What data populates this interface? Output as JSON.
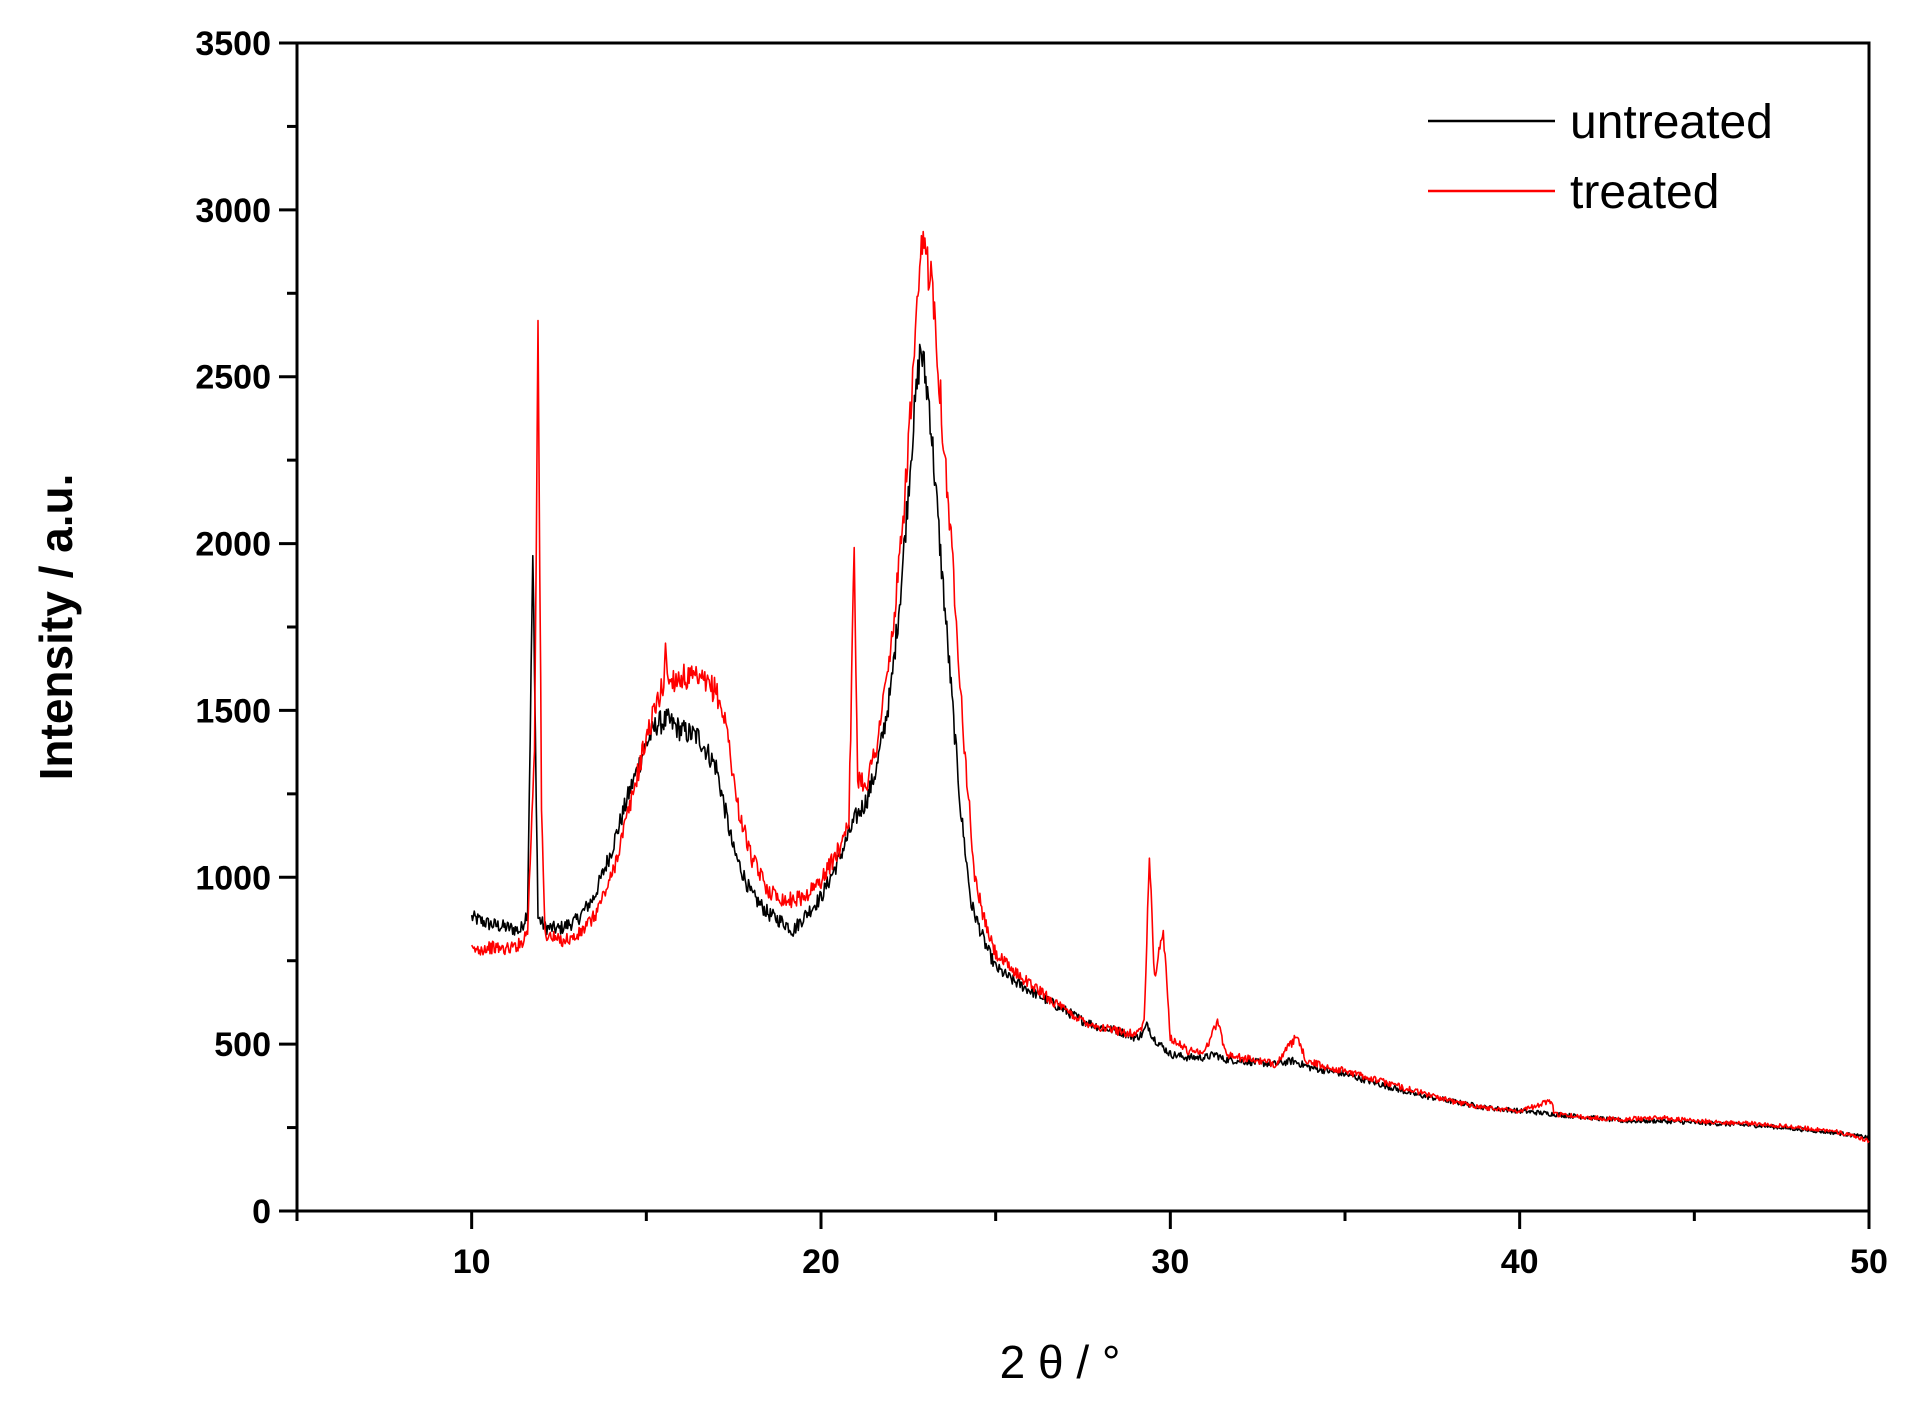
{
  "chart_data": {
    "type": "line",
    "title": "",
    "xlabel": "2 θ / °",
    "ylabel": "Intensity / a.u.",
    "xlim": [
      5,
      50
    ],
    "ylim": [
      0,
      3500
    ],
    "x_ticks": [
      10,
      20,
      30,
      40,
      50
    ],
    "y_ticks": [
      0,
      500,
      1000,
      1500,
      2000,
      2500,
      3000,
      3500
    ],
    "grid": false,
    "legend_position": "top-right",
    "series": [
      {
        "name": "untreated",
        "color": "#000000",
        "points": [
          [
            10.0,
            880
          ],
          [
            10.5,
            860
          ],
          [
            11.0,
            850
          ],
          [
            11.4,
            840
          ],
          [
            11.6,
            900
          ],
          [
            11.75,
            1960
          ],
          [
            11.9,
            880
          ],
          [
            12.1,
            850
          ],
          [
            12.5,
            845
          ],
          [
            13.0,
            870
          ],
          [
            13.5,
            940
          ],
          [
            14.0,
            1080
          ],
          [
            14.5,
            1250
          ],
          [
            15.0,
            1400
          ],
          [
            15.3,
            1460
          ],
          [
            15.6,
            1470
          ],
          [
            16.0,
            1440
          ],
          [
            16.5,
            1420
          ],
          [
            17.0,
            1330
          ],
          [
            17.5,
            1080
          ],
          [
            18.0,
            950
          ],
          [
            18.5,
            890
          ],
          [
            19.0,
            860
          ],
          [
            19.2,
            840
          ],
          [
            19.5,
            880
          ],
          [
            20.0,
            940
          ],
          [
            20.5,
            1050
          ],
          [
            20.8,
            1130
          ],
          [
            21.0,
            1180
          ],
          [
            21.3,
            1230
          ],
          [
            21.6,
            1330
          ],
          [
            22.0,
            1560
          ],
          [
            22.3,
            1880
          ],
          [
            22.6,
            2300
          ],
          [
            22.85,
            2590
          ],
          [
            23.1,
            2420
          ],
          [
            23.4,
            2000
          ],
          [
            23.7,
            1600
          ],
          [
            24.0,
            1200
          ],
          [
            24.3,
            920
          ],
          [
            24.7,
            800
          ],
          [
            25.0,
            730
          ],
          [
            25.5,
            690
          ],
          [
            26.0,
            660
          ],
          [
            26.5,
            630
          ],
          [
            27.0,
            600
          ],
          [
            27.5,
            570
          ],
          [
            28.0,
            550
          ],
          [
            28.5,
            540
          ],
          [
            29.0,
            520
          ],
          [
            29.2,
            530
          ],
          [
            29.35,
            560
          ],
          [
            29.5,
            520
          ],
          [
            30.0,
            470
          ],
          [
            30.5,
            460
          ],
          [
            31.0,
            460
          ],
          [
            31.3,
            470
          ],
          [
            31.5,
            455
          ],
          [
            32.0,
            450
          ],
          [
            33.0,
            440
          ],
          [
            33.5,
            450
          ],
          [
            34.0,
            430
          ],
          [
            35.0,
            410
          ],
          [
            36.0,
            380
          ],
          [
            37.0,
            350
          ],
          [
            38.0,
            330
          ],
          [
            39.0,
            310
          ],
          [
            40.0,
            300
          ],
          [
            41.0,
            290
          ],
          [
            42.0,
            280
          ],
          [
            43.0,
            270
          ],
          [
            44.0,
            270
          ],
          [
            45.0,
            265
          ],
          [
            46.0,
            260
          ],
          [
            47.0,
            255
          ],
          [
            48.0,
            245
          ],
          [
            49.0,
            235
          ],
          [
            50.0,
            220
          ]
        ]
      },
      {
        "name": "treated",
        "color": "#ff0000",
        "points": [
          [
            10.0,
            780
          ],
          [
            10.5,
            790
          ],
          [
            11.0,
            785
          ],
          [
            11.4,
            800
          ],
          [
            11.6,
            840
          ],
          [
            11.8,
            1400
          ],
          [
            11.9,
            2650
          ],
          [
            12.0,
            1200
          ],
          [
            12.1,
            830
          ],
          [
            12.5,
            810
          ],
          [
            13.0,
            820
          ],
          [
            13.5,
            880
          ],
          [
            14.0,
            1000
          ],
          [
            14.5,
            1200
          ],
          [
            15.0,
            1420
          ],
          [
            15.3,
            1520
          ],
          [
            15.5,
            1580
          ],
          [
            15.55,
            1720
          ],
          [
            15.6,
            1590
          ],
          [
            16.0,
            1600
          ],
          [
            16.5,
            1590
          ],
          [
            17.0,
            1560
          ],
          [
            17.3,
            1450
          ],
          [
            17.6,
            1220
          ],
          [
            18.0,
            1060
          ],
          [
            18.5,
            960
          ],
          [
            19.0,
            930
          ],
          [
            19.5,
            940
          ],
          [
            20.0,
            990
          ],
          [
            20.5,
            1080
          ],
          [
            20.8,
            1180
          ],
          [
            20.95,
            1970
          ],
          [
            21.05,
            1300
          ],
          [
            21.3,
            1280
          ],
          [
            21.6,
            1400
          ],
          [
            22.0,
            1680
          ],
          [
            22.3,
            2000
          ],
          [
            22.6,
            2450
          ],
          [
            22.9,
            2900
          ],
          [
            23.2,
            2780
          ],
          [
            23.5,
            2320
          ],
          [
            23.8,
            1900
          ],
          [
            24.1,
            1400
          ],
          [
            24.4,
            1000
          ],
          [
            24.7,
            860
          ],
          [
            25.0,
            770
          ],
          [
            25.5,
            720
          ],
          [
            26.0,
            680
          ],
          [
            26.5,
            640
          ],
          [
            27.0,
            600
          ],
          [
            27.5,
            570
          ],
          [
            28.0,
            550
          ],
          [
            28.5,
            540
          ],
          [
            29.0,
            530
          ],
          [
            29.25,
            560
          ],
          [
            29.4,
            1060
          ],
          [
            29.55,
            700
          ],
          [
            29.8,
            840
          ],
          [
            30.0,
            520
          ],
          [
            30.5,
            480
          ],
          [
            31.0,
            480
          ],
          [
            31.35,
            570
          ],
          [
            31.6,
            470
          ],
          [
            32.0,
            460
          ],
          [
            33.0,
            440
          ],
          [
            33.6,
            520
          ],
          [
            33.9,
            450
          ],
          [
            34.5,
            430
          ],
          [
            35.0,
            420
          ],
          [
            36.0,
            390
          ],
          [
            37.0,
            360
          ],
          [
            38.0,
            330
          ],
          [
            39.0,
            310
          ],
          [
            40.0,
            300
          ],
          [
            40.9,
            330
          ],
          [
            41.0,
            290
          ],
          [
            42.0,
            280
          ],
          [
            43.0,
            275
          ],
          [
            44.0,
            280
          ],
          [
            45.0,
            270
          ],
          [
            46.0,
            265
          ],
          [
            47.0,
            260
          ],
          [
            48.0,
            250
          ],
          [
            49.0,
            240
          ],
          [
            50.0,
            210
          ]
        ]
      }
    ]
  }
}
